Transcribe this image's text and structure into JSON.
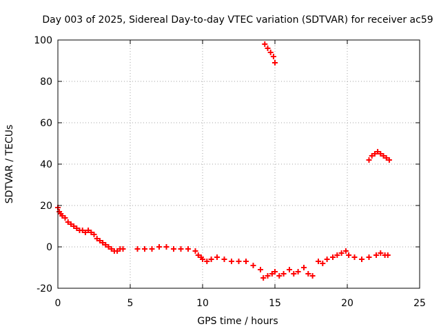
{
  "chart_data": {
    "type": "scatter",
    "title": "Day 003 of 2025, Sidereal Day-to-day VTEC variation (SDTVAR) for receiver ac59",
    "xlabel": "GPS time / hours",
    "ylabel": "SDTVAR / TECUs",
    "xlim": [
      0,
      25
    ],
    "ylim": [
      -20,
      100
    ],
    "xticks": [
      0,
      5,
      10,
      15,
      20,
      25
    ],
    "yticks": [
      -20,
      0,
      20,
      40,
      60,
      80,
      100
    ],
    "grid": true,
    "marker": "+",
    "colors": {
      "series": "#ff0000",
      "grid": "#a0a0a0",
      "axis": "#000000"
    },
    "series": [
      {
        "name": "SDTVAR",
        "x": [
          0.0,
          0.1,
          0.2,
          0.3,
          0.5,
          0.7,
          0.9,
          1.1,
          1.3,
          1.5,
          1.7,
          1.9,
          2.1,
          2.3,
          2.5,
          2.7,
          2.9,
          3.1,
          3.3,
          3.5,
          3.7,
          3.9,
          4.1,
          4.3,
          4.5,
          5.5,
          6.0,
          6.5,
          7.0,
          7.5,
          8.0,
          8.5,
          9.0,
          9.5,
          9.7,
          9.9,
          10.0,
          10.3,
          10.6,
          11.0,
          11.5,
          12.0,
          12.5,
          13.0,
          13.5,
          14.0,
          14.2,
          14.5,
          14.8,
          15.0,
          15.3,
          15.6,
          16.0,
          16.3,
          16.6,
          17.0,
          17.3,
          17.6,
          18.0,
          18.3,
          18.6,
          19.0,
          19.3,
          19.6,
          19.9,
          20.1,
          20.5,
          21.0,
          21.5,
          22.0,
          22.3,
          22.6,
          22.8,
          14.3,
          14.5,
          14.7,
          14.9,
          15.0,
          21.5,
          21.7,
          21.9,
          22.1,
          22.3,
          22.5,
          22.7,
          22.9
        ],
        "y": [
          19,
          17,
          16,
          15,
          14,
          12,
          11,
          10,
          9,
          8,
          8,
          7,
          8,
          7,
          6,
          4,
          3,
          2,
          1,
          0,
          -1,
          -2,
          -2,
          -1,
          -1,
          -1,
          -1,
          -1,
          0,
          0,
          -1,
          -1,
          -1,
          -2,
          -4,
          -5,
          -6,
          -7,
          -6,
          -5,
          -6,
          -7,
          -7,
          -7,
          -9,
          -11,
          -15,
          -14,
          -13,
          -12,
          -14,
          -13,
          -11,
          -13,
          -12,
          -10,
          -13,
          -14,
          -7,
          -8,
          -6,
          -5,
          -4,
          -3,
          -2,
          -4,
          -5,
          -6,
          -5,
          -4,
          -3,
          -4,
          -4,
          98,
          96,
          94,
          92,
          89,
          42,
          44,
          45,
          46,
          45,
          44,
          43,
          42
        ]
      }
    ]
  }
}
